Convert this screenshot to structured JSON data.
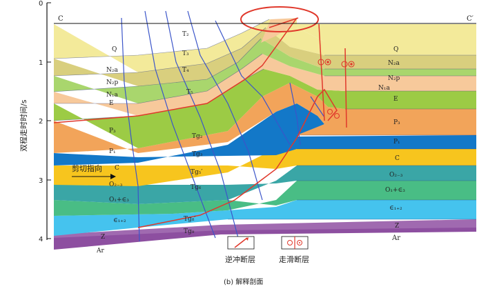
{
  "section": {
    "left_end": "C",
    "right_end": "C′",
    "y_axis_label": "双程走时时间/s",
    "y_ticks": [
      "0",
      "1",
      "2",
      "3",
      "4"
    ],
    "caption": "(b)  解释剖面"
  },
  "left_layers": {
    "Q": "Q",
    "N2a": "N₂a",
    "N2p": "N₂p",
    "N1a": "N₁a",
    "E": "E",
    "P3": "P₃",
    "P1": "P₁",
    "C": "C",
    "O23": "O₂₋₃",
    "O1e3": "O₁+∈₃",
    "e12": "∈₁₊₂",
    "Z": "Z",
    "Ar": "Ar"
  },
  "middle_layers": {
    "T2": "T₂",
    "T3": "T₃",
    "T4": "T₄",
    "T5": "T₅",
    "Tg2": "Tg₂",
    "Tg3": "Tg₃",
    "Tg5p": "Tg₅′",
    "Tg6": "Tg₆",
    "Tg8p": "Tg₈′",
    "Tg9": "Tg₉"
  },
  "right_layers": {
    "Q": "Q",
    "N2a": "N₂a",
    "N2p": "N₂p",
    "N1a": "N₁a",
    "E": "E",
    "P3": "P₃",
    "P1": "P₁",
    "C": "C",
    "O23": "O₂₋₃",
    "O1e3": "O₁+∈₃",
    "e12": "∈₁₊₂",
    "Z": "Z",
    "Ar": "Ar"
  },
  "annotation": {
    "shear_direction": "剪切指向"
  },
  "legend": {
    "thrust_fault": "逆冲断层",
    "strike_slip_fault": "走滑断层"
  },
  "colors": {
    "Q": "#f3ea9a",
    "N2a": "#d9cf7e",
    "N2p": "#a9d66d",
    "N1a": "#f7c99b",
    "E": "#9ccb45",
    "P3": "#f2a45a",
    "P1": "#1378c8",
    "C": "#f7c51e",
    "O23": "#3aa6a6",
    "O1e3": "#49bd85",
    "e12": "#45c3ee",
    "Z": "#a06ab0",
    "base": "#8d4fa0",
    "fault": "#e0382b",
    "blue_line": "#3b55c9",
    "highlight": "#e0382b"
  }
}
